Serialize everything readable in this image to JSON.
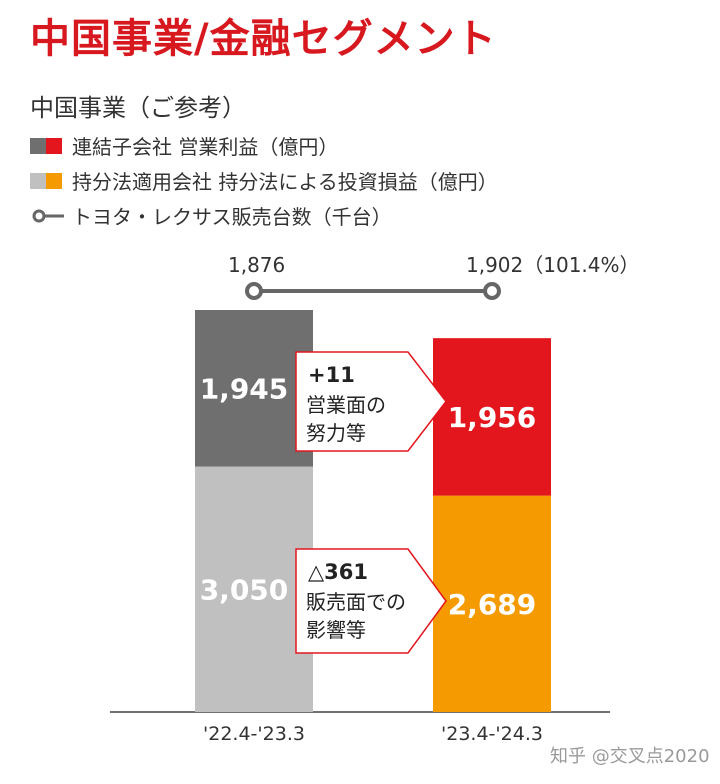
{
  "header": {
    "title": "中国事業/金融セグメント",
    "subtitle": "中国事業（ご参考）"
  },
  "legend": {
    "items": [
      {
        "label": "連結子会社 営業利益（億円）",
        "colors": [
          "#6f6f6f",
          "#e3161d"
        ],
        "symbol": "swatch-pair"
      },
      {
        "label": "持分法適用会社 持分法による投資損益（億円）",
        "colors": [
          "#c0c0c0",
          "#f59a00"
        ],
        "symbol": "swatch-pair"
      },
      {
        "label": "トヨタ・レクサス販売台数（千台）",
        "colors": [
          "#666666"
        ],
        "symbol": "line-marker"
      }
    ]
  },
  "chart_data": {
    "type": "bar",
    "stacked": true,
    "categories": [
      "'22.4-'23.3",
      "'23.4-'24.3"
    ],
    "series": [
      {
        "name": "持分法適用会社 持分法による投資損益（億円）",
        "values": [
          3050,
          2689
        ],
        "labels": [
          "3,050",
          "2,689"
        ],
        "colors": [
          "#c0c0c0",
          "#f59a00"
        ]
      },
      {
        "name": "連結子会社 営業利益（億円）",
        "values": [
          1945,
          1956
        ],
        "labels": [
          "1,945",
          "1,956"
        ],
        "colors": [
          "#6f6f6f",
          "#e3161d"
        ]
      }
    ],
    "line_series": {
      "name": "トヨタ・レクサス販売台数（千台）",
      "values": [
        1876,
        1902
      ],
      "labels": [
        "1,876",
        "1,902（101.4%）"
      ],
      "color": "#666666"
    },
    "annotations": [
      {
        "value": "+11",
        "text": [
          "営業面の",
          "努力等"
        ],
        "segment": "operating"
      },
      {
        "value": "△361",
        "text": [
          "販売面での",
          "影響等"
        ],
        "segment": "equity"
      }
    ],
    "ylim": [
      0,
      5000
    ]
  },
  "watermark": "知乎 @交叉点2020"
}
